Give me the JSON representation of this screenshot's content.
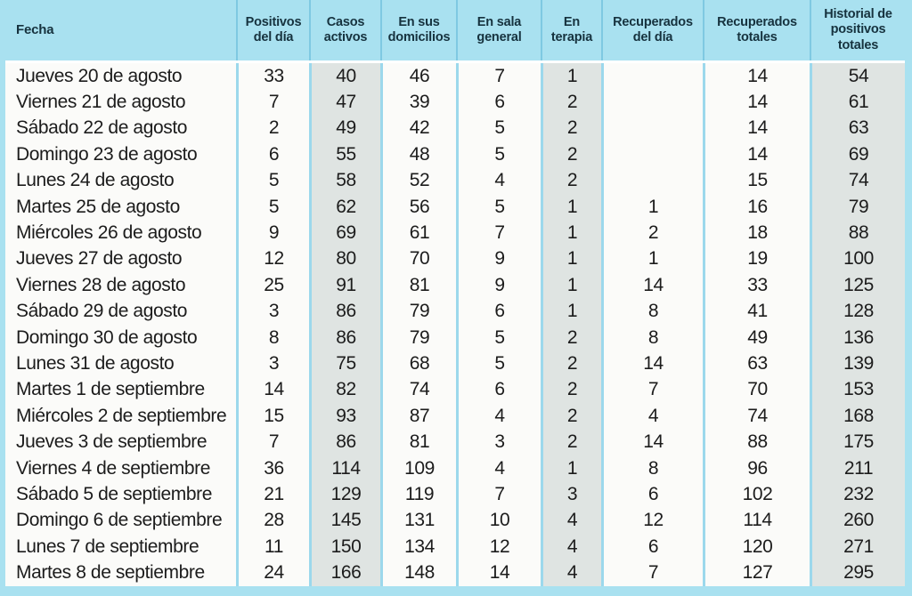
{
  "chart_data": {
    "type": "table",
    "title": "",
    "columns": [
      {
        "label": "Fecha",
        "shaded": false
      },
      {
        "label": "Positivos del día",
        "shaded": false
      },
      {
        "label": "Casos activos",
        "shaded": true
      },
      {
        "label": "En sus domicilios",
        "shaded": false
      },
      {
        "label": "En sala general",
        "shaded": false
      },
      {
        "label": "En terapia",
        "shaded": true
      },
      {
        "label": "Recuperados del día",
        "shaded": false
      },
      {
        "label": "Recuperados totales",
        "shaded": false
      },
      {
        "label": "Historial de positivos totales",
        "shaded": true
      }
    ],
    "rows": [
      [
        "Jueves 20 de agosto",
        "33",
        "40",
        "46",
        "7",
        "1",
        "",
        "14",
        "54"
      ],
      [
        "Viernes 21 de agosto",
        "7",
        "47",
        "39",
        "6",
        "2",
        "",
        "14",
        "61"
      ],
      [
        "Sábado 22 de agosto",
        "2",
        "49",
        "42",
        "5",
        "2",
        "",
        "14",
        "63"
      ],
      [
        "Domingo 23 de agosto",
        "6",
        "55",
        "48",
        "5",
        "2",
        "",
        "14",
        "69"
      ],
      [
        "Lunes 24 de agosto",
        "5",
        "58",
        "52",
        "4",
        "2",
        "",
        "15",
        "74"
      ],
      [
        "Martes 25 de agosto",
        "5",
        "62",
        "56",
        "5",
        "1",
        "1",
        "16",
        "79"
      ],
      [
        "Miércoles 26 de agosto",
        "9",
        "69",
        "61",
        "7",
        "1",
        "2",
        "18",
        "88"
      ],
      [
        "Jueves 27 de agosto",
        "12",
        "80",
        "70",
        "9",
        "1",
        "1",
        "19",
        "100"
      ],
      [
        "Viernes 28 de agosto",
        "25",
        "91",
        "81",
        "9",
        "1",
        "14",
        "33",
        "125"
      ],
      [
        "Sábado 29 de agosto",
        "3",
        "86",
        "79",
        "6",
        "1",
        "8",
        "41",
        "128"
      ],
      [
        "Domingo 30 de agosto",
        "8",
        "86",
        "79",
        "5",
        "2",
        "8",
        "49",
        "136"
      ],
      [
        "Lunes 31 de agosto",
        "3",
        "75",
        "68",
        "5",
        "2",
        "14",
        "63",
        "139"
      ],
      [
        "Martes 1 de septiembre",
        "14",
        "82",
        "74",
        "6",
        "2",
        "7",
        "70",
        "153"
      ],
      [
        "Miércoles 2 de septiembre",
        "15",
        "93",
        "87",
        "4",
        "2",
        "4",
        "74",
        "168"
      ],
      [
        "Jueves 3 de septiembre",
        "7",
        "86",
        "81",
        "3",
        "2",
        "14",
        "88",
        "175"
      ],
      [
        "Viernes 4 de septiembre",
        "36",
        "114",
        "109",
        "4",
        "1",
        "8",
        "96",
        "211"
      ],
      [
        "Sábado 5 de septiembre",
        "21",
        "129",
        "119",
        "7",
        "3",
        "6",
        "102",
        "232"
      ],
      [
        "Domingo 6 de septiembre",
        "28",
        "145",
        "131",
        "10",
        "4",
        "12",
        "114",
        "260"
      ],
      [
        "Lunes 7 de septiembre",
        "11",
        "150",
        "134",
        "12",
        "4",
        "6",
        "120",
        "271"
      ],
      [
        "Martes 8 de septiembre",
        "24",
        "166",
        "148",
        "14",
        "4",
        "7",
        "127",
        "295"
      ]
    ]
  },
  "colors": {
    "header_bg": "#a9e1f0",
    "header_separator": "#7fc9e2",
    "header_text": "#16323e",
    "body_bg": "#fbfbf9",
    "body_text": "#1c1c1c",
    "shaded_bg": "#dfe4e2",
    "separator": "#9cd8ec",
    "frame": "#a9e1f0"
  }
}
